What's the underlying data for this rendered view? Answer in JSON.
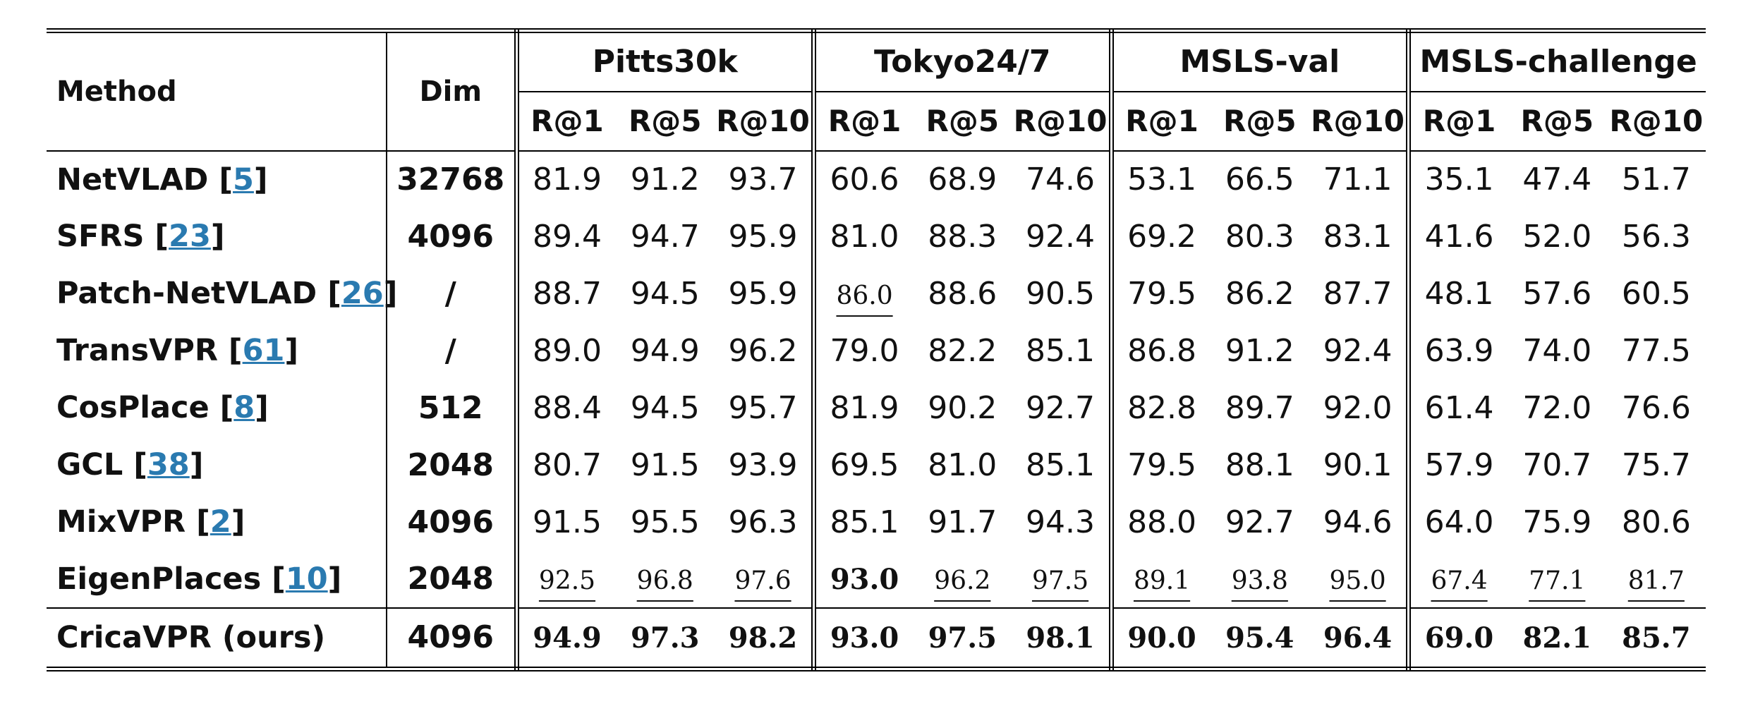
{
  "header": {
    "method": "Method",
    "dim": "Dim",
    "groups": [
      {
        "name": "Pitts30k",
        "metrics": [
          "R@1",
          "R@5",
          "R@10"
        ]
      },
      {
        "name": "Tokyo24/7",
        "metrics": [
          "R@1",
          "R@5",
          "R@10"
        ]
      },
      {
        "name": "MSLS-val",
        "metrics": [
          "R@1",
          "R@5",
          "R@10"
        ]
      },
      {
        "name": "MSLS-challenge",
        "metrics": [
          "R@1",
          "R@5",
          "R@10"
        ]
      }
    ]
  },
  "rows": [
    {
      "method": [
        "NetVLAD [",
        "5",
        "]"
      ],
      "dim": "32768",
      "values": [
        "81.9",
        "91.2",
        "93.7",
        "60.6",
        "68.9",
        "74.6",
        "53.1",
        "66.5",
        "71.1",
        "35.1",
        "47.4",
        "51.7"
      ]
    },
    {
      "method": [
        "SFRS [",
        "23",
        "]"
      ],
      "dim": "4096",
      "values": [
        "89.4",
        "94.7",
        "95.9",
        "81.0",
        "88.3",
        "92.4",
        "69.2",
        "80.3",
        "83.1",
        "41.6",
        "52.0",
        "56.3"
      ]
    },
    {
      "method": [
        "Patch-NetVLAD [",
        "26",
        "]"
      ],
      "dim": "/",
      "values": [
        "88.7",
        "94.5",
        "95.9",
        "86.0",
        "88.6",
        "90.5",
        "79.5",
        "86.2",
        "87.7",
        "48.1",
        "57.6",
        "60.5"
      ],
      "underline": [
        3
      ]
    },
    {
      "method": [
        "TransVPR [",
        "61",
        "]"
      ],
      "dim": "/",
      "values": [
        "89.0",
        "94.9",
        "96.2",
        "79.0",
        "82.2",
        "85.1",
        "86.8",
        "91.2",
        "92.4",
        "63.9",
        "74.0",
        "77.5"
      ]
    },
    {
      "method": [
        "CosPlace [",
        "8",
        "]"
      ],
      "dim": "512",
      "values": [
        "88.4",
        "94.5",
        "95.7",
        "81.9",
        "90.2",
        "92.7",
        "82.8",
        "89.7",
        "92.0",
        "61.4",
        "72.0",
        "76.6"
      ]
    },
    {
      "method": [
        "GCL [",
        "38",
        "]"
      ],
      "dim": "2048",
      "values": [
        "80.7",
        "91.5",
        "93.9",
        "69.5",
        "81.0",
        "85.1",
        "79.5",
        "88.1",
        "90.1",
        "57.9",
        "70.7",
        "75.7"
      ]
    },
    {
      "method": [
        "MixVPR [",
        "2",
        "]"
      ],
      "dim": "4096",
      "values": [
        "91.5",
        "95.5",
        "96.3",
        "85.1",
        "91.7",
        "94.3",
        "88.0",
        "92.7",
        "94.6",
        "64.0",
        "75.9",
        "80.6"
      ]
    },
    {
      "method": [
        "EigenPlaces [",
        "10",
        "]"
      ],
      "dim": "2048",
      "values": [
        "92.5",
        "96.8",
        "97.6",
        "93.0",
        "96.2",
        "97.5",
        "89.1",
        "93.8",
        "95.0",
        "67.4",
        "77.1",
        "81.7"
      ],
      "bold": [
        3
      ],
      "underline": [
        0,
        1,
        2,
        4,
        5,
        6,
        7,
        8,
        9,
        10,
        11
      ]
    },
    {
      "method": [
        "CricaVPR (ours)"
      ],
      "dim": "4096",
      "values": [
        "94.9",
        "97.3",
        "98.2",
        "93.0",
        "97.5",
        "98.1",
        "90.0",
        "95.4",
        "96.4",
        "69.0",
        "82.1",
        "85.7"
      ],
      "bold": [
        0,
        1,
        2,
        3,
        4,
        5,
        6,
        7,
        8,
        9,
        10,
        11
      ]
    }
  ]
}
